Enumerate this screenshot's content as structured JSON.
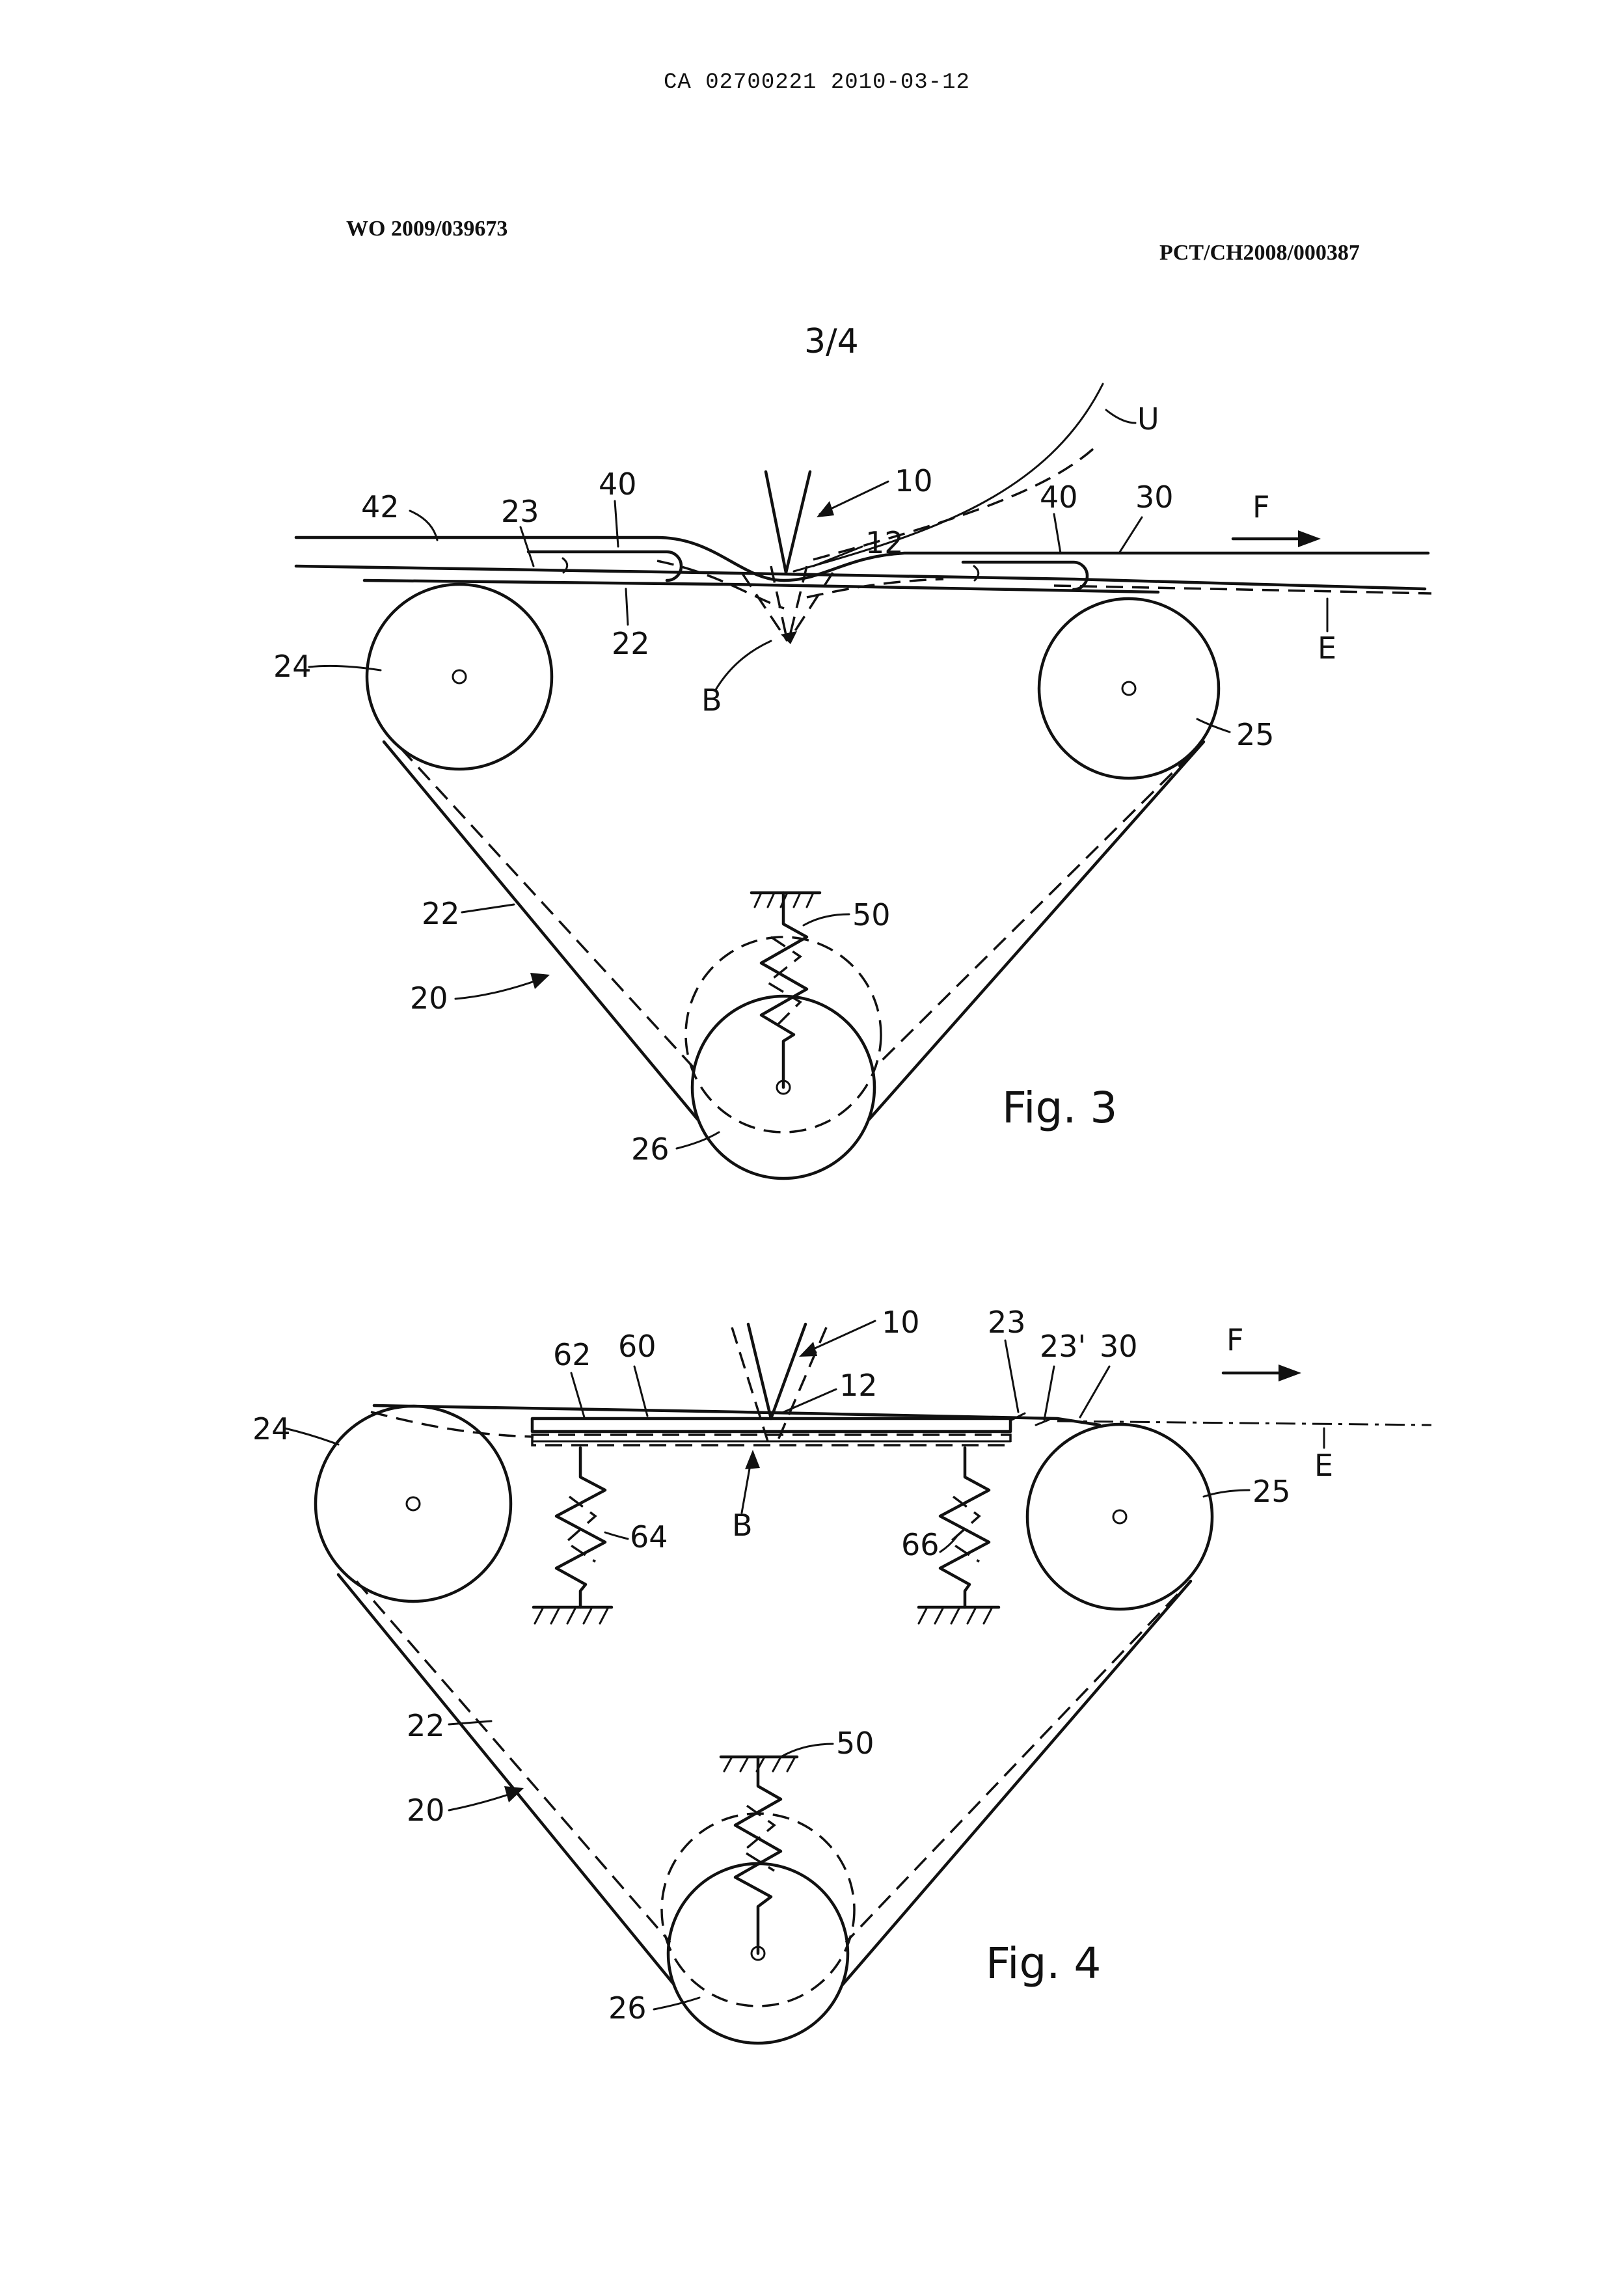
{
  "header": {
    "ca_number": "CA 02700221 2010-03-12",
    "wo_number": "WO 2009/039673",
    "pct_number": "PCT/CH2008/000387",
    "sheet": "3/4"
  },
  "fig3": {
    "title": "Fig. 3",
    "labels": {
      "l42": "42",
      "l23": "23",
      "l40a": "40",
      "l10": "10",
      "lU": "U",
      "l40b": "40",
      "l30": "30",
      "lF": "F",
      "l12": "12",
      "l22top": "22",
      "lE": "E",
      "l24": "24",
      "lB": "B",
      "l25": "25",
      "l22side": "22",
      "l50": "50",
      "l20": "20",
      "l26": "26"
    }
  },
  "fig4": {
    "title": "Fig. 4",
    "labels": {
      "l62": "62",
      "l60": "60",
      "l10": "10",
      "l23": "23",
      "l23p": "23'",
      "l30": "30",
      "lF": "F",
      "l12": "12",
      "l24": "24",
      "lE": "E",
      "l25": "25",
      "lB": "B",
      "l64": "64",
      "l66": "66",
      "l22": "22",
      "l50": "50",
      "l20": "20",
      "l26": "26"
    }
  }
}
